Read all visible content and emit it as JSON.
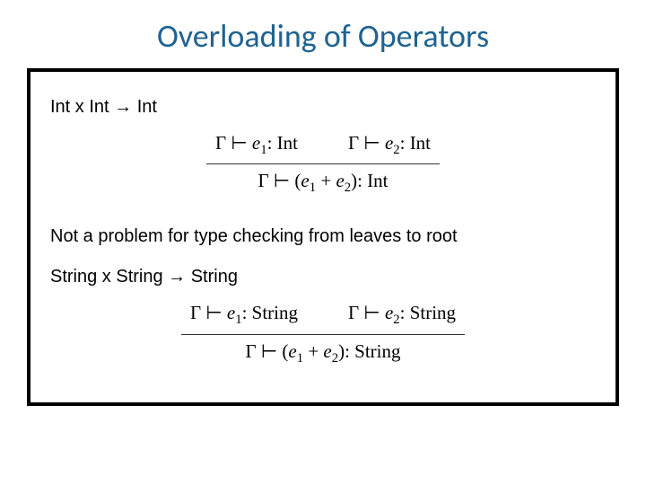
{
  "title": {
    "text": "Overloading of Operators",
    "color": "#1f6391",
    "fontsize": 36
  },
  "box": {
    "border_color": "#000000",
    "border_width": 4,
    "background": "#ffffff"
  },
  "sig_int": "Int x Int → Int",
  "rule_int": {
    "premise_left": "Γ ⊢ e₁: Int",
    "premise_right": "Γ ⊢ e₂: Int",
    "conclusion": "Γ ⊢ (e₁ + e₂): Int"
  },
  "note": "Not a problem for type checking from leaves to root",
  "sig_string": "String x String → String",
  "rule_string": {
    "premise_left": "Γ ⊢ e₁: String",
    "premise_right": "Γ ⊢ e₂: String",
    "conclusion": "Γ ⊢ (e₁ + e₂): String"
  },
  "colors": {
    "text": "#000000",
    "rule_text": "#333333"
  }
}
